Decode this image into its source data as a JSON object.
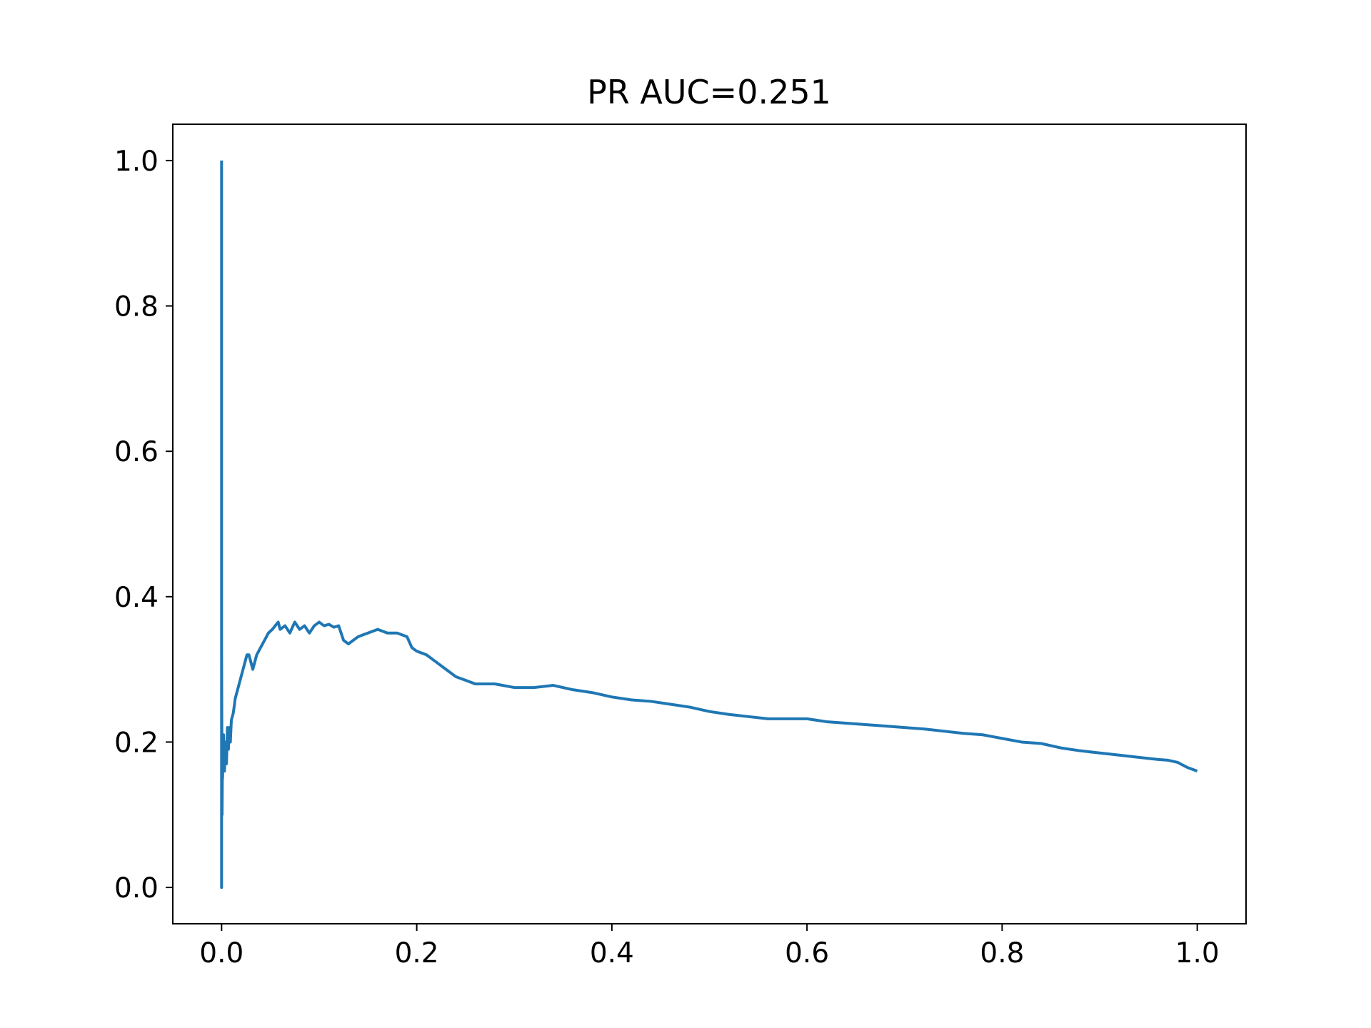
{
  "chart_data": {
    "type": "line",
    "title": "PR AUC=0.251",
    "xlabel": "",
    "ylabel": "",
    "xlim": [
      -0.05,
      1.05
    ],
    "ylim": [
      -0.05,
      1.05
    ],
    "x_ticks": [
      0.0,
      0.2,
      0.4,
      0.6,
      0.8,
      1.0
    ],
    "x_tick_labels": [
      "0.0",
      "0.2",
      "0.4",
      "0.6",
      "0.8",
      "1.0"
    ],
    "y_ticks": [
      0.0,
      0.2,
      0.4,
      0.6,
      0.8,
      1.0
    ],
    "y_tick_labels": [
      "0.0",
      "0.2",
      "0.4",
      "0.6",
      "0.8",
      "1.0"
    ],
    "grid": false,
    "legend": "none",
    "line_color": "#1f77b4",
    "series": [
      {
        "x": [
          0.0,
          0.0,
          0.0,
          0.0005,
          0.001,
          0.001,
          0.002,
          0.003,
          0.004,
          0.005,
          0.006,
          0.007,
          0.008,
          0.009,
          0.01,
          0.012,
          0.014,
          0.016,
          0.018,
          0.02,
          0.022,
          0.024,
          0.026,
          0.028,
          0.03,
          0.032,
          0.034,
          0.036,
          0.04,
          0.044,
          0.048,
          0.052,
          0.055,
          0.058,
          0.06,
          0.065,
          0.07,
          0.075,
          0.08,
          0.085,
          0.09,
          0.095,
          0.1,
          0.105,
          0.11,
          0.115,
          0.12,
          0.125,
          0.13,
          0.135,
          0.14,
          0.15,
          0.16,
          0.17,
          0.18,
          0.19,
          0.195,
          0.2,
          0.21,
          0.22,
          0.23,
          0.24,
          0.25,
          0.26,
          0.28,
          0.3,
          0.32,
          0.34,
          0.36,
          0.38,
          0.4,
          0.42,
          0.44,
          0.46,
          0.48,
          0.5,
          0.52,
          0.54,
          0.56,
          0.58,
          0.6,
          0.62,
          0.64,
          0.66,
          0.68,
          0.7,
          0.72,
          0.74,
          0.76,
          0.78,
          0.8,
          0.82,
          0.84,
          0.86,
          0.88,
          0.9,
          0.92,
          0.94,
          0.96,
          0.97,
          0.98,
          0.99,
          1.0
        ],
        "y": [
          1.0,
          0.0,
          0.33,
          0.1,
          0.2,
          0.15,
          0.21,
          0.16,
          0.2,
          0.17,
          0.22,
          0.19,
          0.22,
          0.2,
          0.23,
          0.24,
          0.26,
          0.27,
          0.28,
          0.29,
          0.3,
          0.31,
          0.32,
          0.32,
          0.31,
          0.3,
          0.31,
          0.32,
          0.33,
          0.34,
          0.35,
          0.355,
          0.36,
          0.365,
          0.355,
          0.36,
          0.35,
          0.365,
          0.355,
          0.36,
          0.35,
          0.36,
          0.365,
          0.36,
          0.362,
          0.358,
          0.36,
          0.34,
          0.335,
          0.34,
          0.345,
          0.35,
          0.355,
          0.35,
          0.35,
          0.345,
          0.33,
          0.325,
          0.32,
          0.31,
          0.3,
          0.29,
          0.285,
          0.28,
          0.28,
          0.275,
          0.275,
          0.278,
          0.272,
          0.268,
          0.262,
          0.258,
          0.256,
          0.252,
          0.248,
          0.242,
          0.238,
          0.235,
          0.232,
          0.232,
          0.232,
          0.228,
          0.226,
          0.224,
          0.222,
          0.22,
          0.218,
          0.215,
          0.212,
          0.21,
          0.205,
          0.2,
          0.198,
          0.192,
          0.188,
          0.185,
          0.182,
          0.179,
          0.176,
          0.175,
          0.172,
          0.165,
          0.16
        ]
      }
    ]
  }
}
